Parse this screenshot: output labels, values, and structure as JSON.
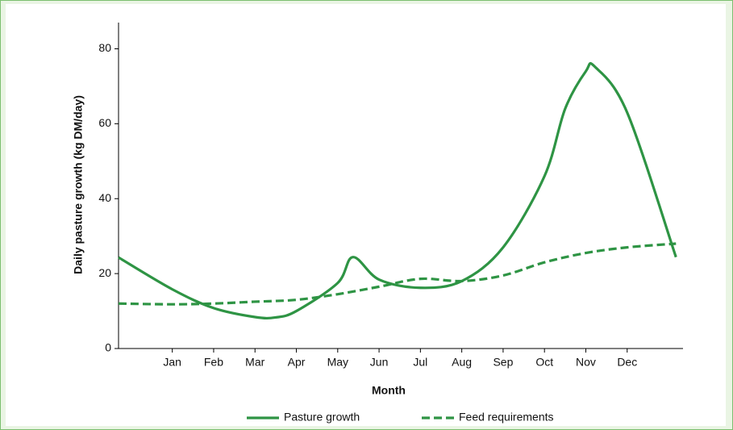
{
  "chart_data": {
    "type": "line",
    "x_label": "Month",
    "y_label": "Daily pasture growth (kg DM/day)",
    "xlim": [
      -0.3,
      13.35
    ],
    "xticks": [
      {
        "value": 1,
        "label": "Jan"
      },
      {
        "value": 2,
        "label": "Feb"
      },
      {
        "value": 3,
        "label": "Mar"
      },
      {
        "value": 4,
        "label": "Apr"
      },
      {
        "value": 5,
        "label": "May"
      },
      {
        "value": 6,
        "label": "Jun"
      },
      {
        "value": 7,
        "label": "Jul"
      },
      {
        "value": 8,
        "label": "Aug"
      },
      {
        "value": 9,
        "label": "Sep"
      },
      {
        "value": 10,
        "label": "Oct"
      },
      {
        "value": 11,
        "label": "Nov"
      },
      {
        "value": 12,
        "label": "Dec"
      }
    ],
    "ylim": [
      0,
      87
    ],
    "yticks": [
      0,
      20,
      40,
      60,
      80
    ],
    "series": [
      {
        "name": "Pasture growth",
        "color": "#2e9444",
        "dash": "solid",
        "x": [
          -0.3,
          1,
          2,
          3,
          3.5,
          4,
          5,
          5.37,
          6,
          7,
          8,
          9,
          10,
          10.5,
          11,
          11.22,
          12,
          13.18
        ],
        "values": [
          24.3,
          15.8,
          10.8,
          8.4,
          8.3,
          10,
          17.5,
          24.4,
          18.4,
          16.2,
          18,
          27,
          46,
          64,
          74,
          75.2,
          63,
          24.4
        ]
      },
      {
        "name": "Feed requirements",
        "color": "#2e9444",
        "dash": "dashed",
        "x": [
          -0.3,
          1,
          2,
          3,
          4,
          5,
          6,
          7,
          8,
          9,
          10,
          11,
          12,
          13.18
        ],
        "values": [
          12,
          11.8,
          12,
          12.5,
          13,
          14.5,
          16.5,
          18.6,
          18,
          19.5,
          23,
          25.5,
          27,
          28
        ]
      }
    ]
  }
}
